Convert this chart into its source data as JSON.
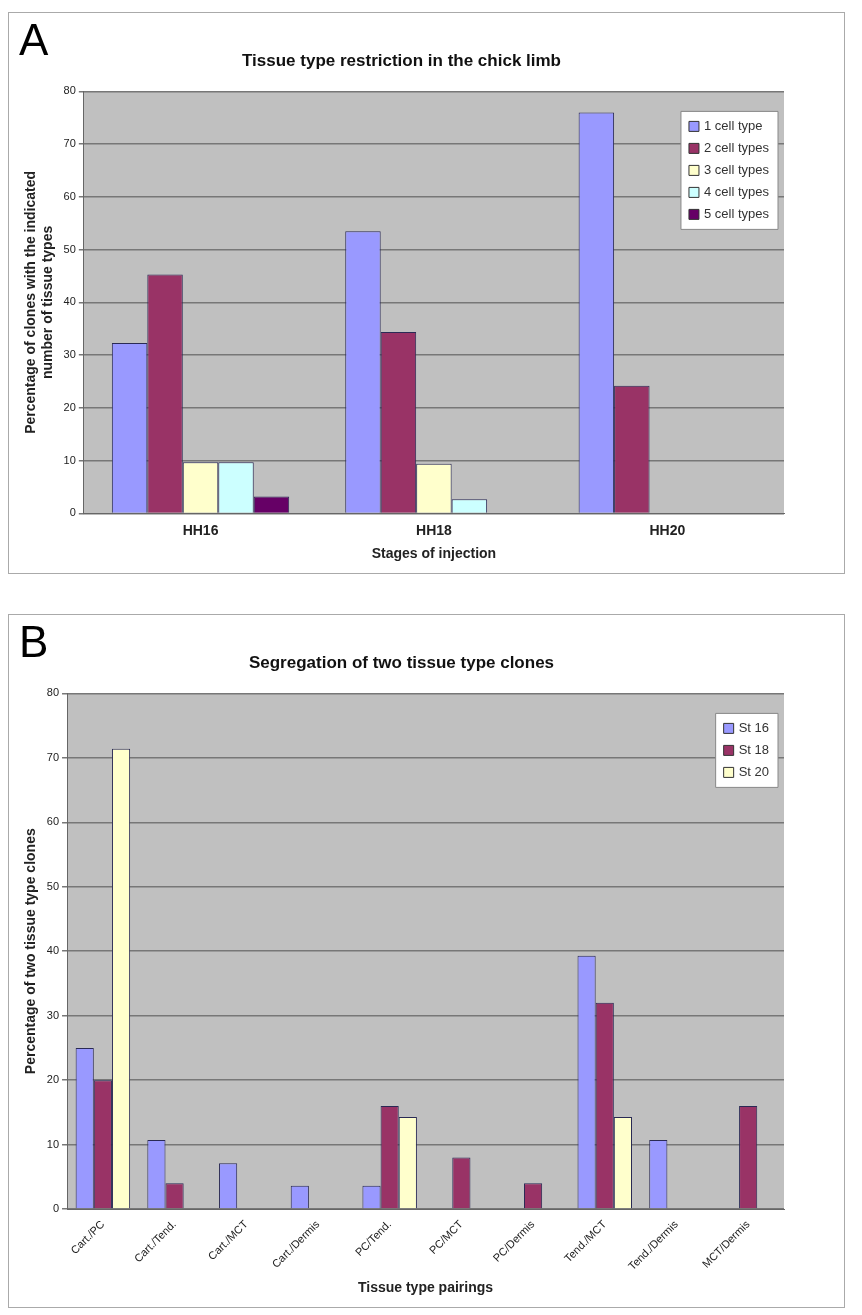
{
  "chart_data": [
    {
      "type": "bar",
      "title": "Tissue type restriction in the chick limb",
      "xlabel": "Stages of injection",
      "ylabel": "Percentage of clones with the indicated\nnumber of tissue types",
      "annotations": [
        "A"
      ],
      "categories": [
        "HH16",
        "HH18",
        "HH20"
      ],
      "series": [
        {
          "name": "1 cell type",
          "color": "#9999ff",
          "values": [
            32.3,
            53.5,
            76
          ]
        },
        {
          "name": "2 cell types",
          "color": "#993366",
          "values": [
            45.3,
            34.4,
            24.2
          ]
        },
        {
          "name": "3 cell types",
          "color": "#ffffcc",
          "values": [
            9.7,
            9.4,
            0
          ]
        },
        {
          "name": "4 cell types",
          "color": "#ccffff",
          "values": [
            9.7,
            2.7,
            0
          ]
        },
        {
          "name": "5 cell types",
          "color": "#660066",
          "values": [
            3.2,
            0,
            0
          ]
        }
      ],
      "ylim": [
        0,
        80
      ],
      "yticks": [
        0,
        10,
        20,
        30,
        40,
        50,
        60,
        70,
        80
      ],
      "grid": "y",
      "legend": "top right"
    },
    {
      "type": "bar",
      "title": "Segregation of two tissue type clones",
      "xlabel": "Tissue type pairings",
      "ylabel": "Percentage of two tissue type clones",
      "annotations": [
        "B"
      ],
      "categories": [
        "Cart./PC",
        "Cart./Tend.",
        "Cart./MCT",
        "Cart./Dermis",
        "PC/Tend.",
        "PC/MCT",
        "PC/Dermis",
        "Tend./MCT",
        "Tend./Dermis",
        "MCT/Dermis"
      ],
      "series": [
        {
          "name": "St 16",
          "color": "#9999ff",
          "values": [
            25,
            10.7,
            7.1,
            3.6,
            3.6,
            0,
            0,
            39.3,
            10.7,
            0
          ]
        },
        {
          "name": "St 18",
          "color": "#993366",
          "values": [
            20,
            4,
            0,
            0,
            16,
            8,
            4,
            32,
            0,
            16
          ]
        },
        {
          "name": "St 20",
          "color": "#ffffcc",
          "values": [
            71.4,
            0,
            0,
            0,
            14.3,
            0,
            0,
            14.3,
            0,
            0
          ]
        }
      ],
      "ylim": [
        0,
        80
      ],
      "yticks": [
        0,
        10,
        20,
        30,
        40,
        50,
        60,
        70,
        80
      ],
      "grid": "y",
      "legend": "top right"
    }
  ]
}
